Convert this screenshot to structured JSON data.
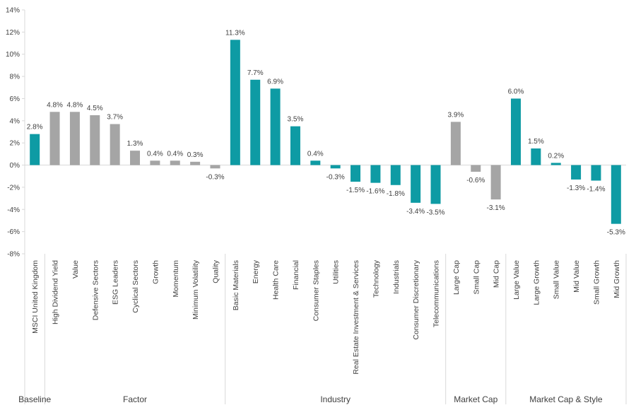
{
  "chart_data": {
    "type": "bar",
    "title": "",
    "xlabel": "",
    "ylabel": "",
    "ylim": [
      -8,
      14
    ],
    "y_ticks": [
      -8,
      -6,
      -4,
      -2,
      0,
      2,
      4,
      6,
      8,
      10,
      12,
      14
    ],
    "y_tick_format": "{v}%",
    "grid": false,
    "legend": "none",
    "colors": {
      "teal": "#0e9ba4",
      "gray": "#a5a5a5",
      "axis": "#d9d9d9",
      "text": "#404040"
    },
    "groups": [
      {
        "name": "Baseline",
        "count": 1
      },
      {
        "name": "Factor",
        "count": 9
      },
      {
        "name": "Industry",
        "count": 11
      },
      {
        "name": "Market Cap",
        "count": 3
      },
      {
        "name": "Market Cap & Style",
        "count": 6
      }
    ],
    "categories": [
      "MSCI United Kingdom",
      "High Dividend Yield",
      "Value",
      "Defensive Sectors",
      "ESG Leaders",
      "Cyclical Sectors",
      "Growth",
      "Momentum",
      "Minimum Volatility",
      "Quality",
      "Basic Materials",
      "Energy",
      "Health Care",
      "Financial",
      "Consumer Staples",
      "Utilities",
      "Real Estate Investment & Services",
      "Technology",
      "Industrials",
      "Consumer Discretionary",
      "Telecommunications",
      "Large Cap",
      "Small Cap",
      "Mid Cap",
      "Large Value",
      "Large Growth",
      "Small Value",
      "Mid Value",
      "Small Growth",
      "Mid Growth"
    ],
    "values": [
      2.8,
      4.8,
      4.8,
      4.5,
      3.7,
      1.3,
      0.4,
      0.4,
      0.3,
      -0.3,
      11.3,
      7.7,
      6.9,
      3.5,
      0.4,
      -0.3,
      -1.5,
      -1.6,
      -1.8,
      -3.4,
      -3.5,
      3.9,
      -0.6,
      -3.1,
      6.0,
      1.5,
      0.2,
      -1.3,
      -1.4,
      -5.3
    ],
    "labels": [
      "2.8%",
      "4.8%",
      "4.8%",
      "4.5%",
      "3.7%",
      "1.3%",
      "0.4%",
      "0.4%",
      "0.3%",
      "-0.3%",
      "11.3%",
      "7.7%",
      "6.9%",
      "3.5%",
      "0.4%",
      "-0.3%",
      "-1.5%",
      "-1.6%",
      "-1.8%",
      "-3.4%",
      "-3.5%",
      "3.9%",
      "-0.6%",
      "-3.1%",
      "6.0%",
      "1.5%",
      "0.2%",
      "-1.3%",
      "-1.4%",
      "-5.3%"
    ],
    "bar_colors": [
      "teal",
      "gray",
      "gray",
      "gray",
      "gray",
      "gray",
      "gray",
      "gray",
      "gray",
      "gray",
      "teal",
      "teal",
      "teal",
      "teal",
      "teal",
      "teal",
      "teal",
      "teal",
      "teal",
      "teal",
      "teal",
      "gray",
      "gray",
      "gray",
      "teal",
      "teal",
      "teal",
      "teal",
      "teal",
      "teal"
    ]
  }
}
